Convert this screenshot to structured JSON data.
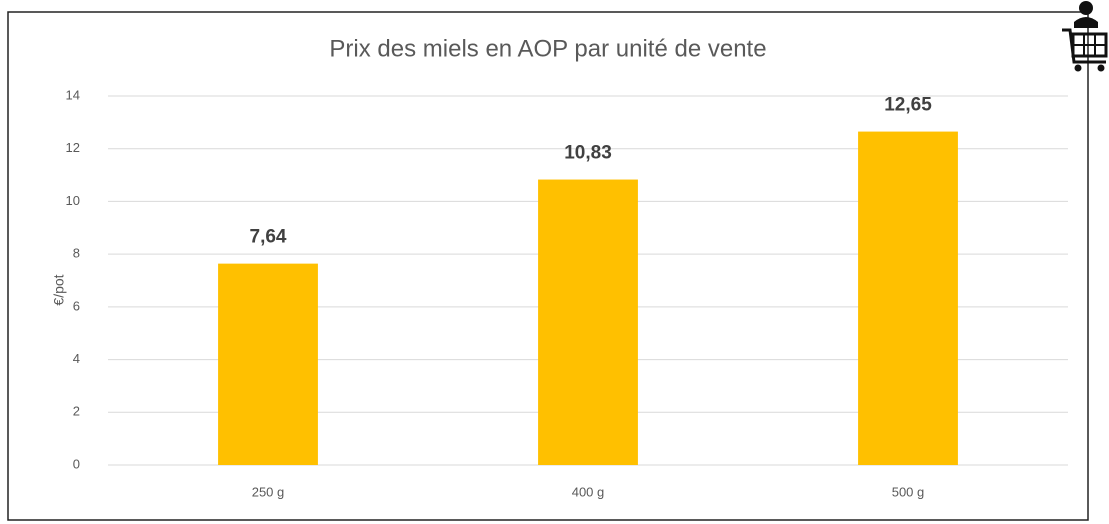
{
  "chart_data": {
    "type": "bar",
    "title": "Prix des miels en AOP par unité de vente",
    "y_label": "€/pot",
    "categories": [
      "250 g",
      "400 g",
      "500 g"
    ],
    "values": [
      7.64,
      10.83,
      12.65
    ],
    "value_labels": [
      "7,64",
      "10,83",
      "12,65"
    ],
    "color": "#ffc000",
    "ylim": [
      0,
      14
    ],
    "yticks": [
      0,
      2,
      4,
      6,
      8,
      10,
      12,
      14
    ],
    "grid": true
  }
}
